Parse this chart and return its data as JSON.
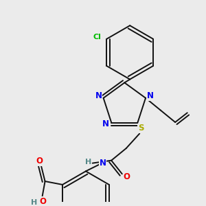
{
  "bg_color": "#ebebeb",
  "N": "#0000ee",
  "S": "#aaaa00",
  "O": "#ee0000",
  "Cl": "#00bb00",
  "H_col": "#558888",
  "black": "#111111",
  "lw": 1.4,
  "fs": 8.5
}
